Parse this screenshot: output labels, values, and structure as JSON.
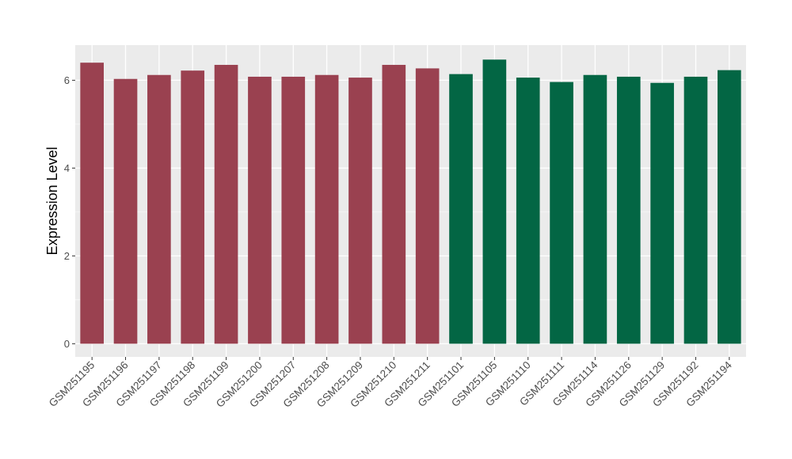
{
  "chart_data": {
    "type": "bar",
    "title": "",
    "xlabel": "",
    "ylabel": "Expression Level",
    "ylim": [
      -0.3,
      6.8
    ],
    "yticks": [
      0,
      2,
      4,
      6
    ],
    "grid": true,
    "legend": "none",
    "categories": [
      "GSM251195",
      "GSM251196",
      "GSM251197",
      "GSM251198",
      "GSM251199",
      "GSM251200",
      "GSM251207",
      "GSM251208",
      "GSM251209",
      "GSM251210",
      "GSM251211",
      "GSM251101",
      "GSM251105",
      "GSM251110",
      "GSM251111",
      "GSM251114",
      "GSM251126",
      "GSM251129",
      "GSM251192",
      "GSM251194"
    ],
    "values": [
      6.4,
      6.03,
      6.12,
      6.22,
      6.35,
      6.08,
      6.08,
      6.12,
      6.06,
      6.35,
      6.27,
      6.14,
      6.47,
      6.06,
      5.96,
      6.12,
      6.08,
      5.94,
      6.08,
      6.23
    ],
    "groups": [
      "A",
      "A",
      "A",
      "A",
      "A",
      "A",
      "A",
      "A",
      "A",
      "A",
      "A",
      "B",
      "B",
      "B",
      "B",
      "B",
      "B",
      "B",
      "B",
      "B"
    ],
    "colors": {
      "A": "#9a4150",
      "B": "#036644"
    },
    "panel_background": "#ebebeb",
    "grid_color": "#ffffff"
  }
}
